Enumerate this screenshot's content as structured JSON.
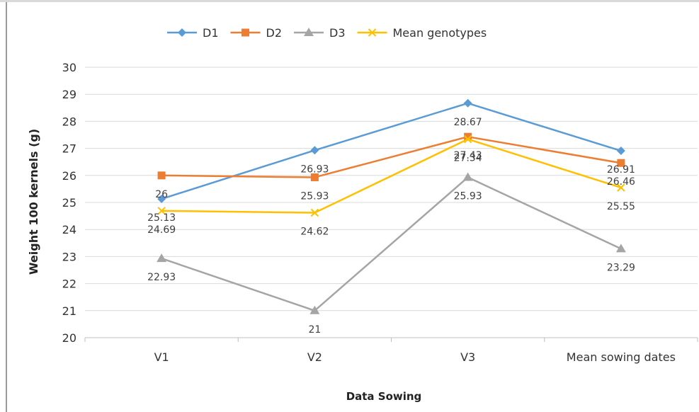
{
  "chart_data": {
    "type": "line",
    "title": "",
    "xlabel": "Data Sowing",
    "ylabel": "Weight 100 kernels (g)",
    "categories": [
      "V1",
      "V2",
      "V3",
      "Mean sowing dates"
    ],
    "ylim": [
      20,
      30
    ],
    "yticks": [
      "20",
      "21",
      "22",
      "23",
      "24",
      "25",
      "26",
      "27",
      "28",
      "29",
      "30"
    ],
    "grid": true,
    "legend_position": "top",
    "series": [
      {
        "name": "D1",
        "values": [
          25.13,
          26.93,
          28.67,
          26.91
        ],
        "labels": [
          "25.13",
          "26.93",
          "28.67",
          "26.91"
        ],
        "color": "#5B9BD5",
        "marker": "diamond"
      },
      {
        "name": "D2",
        "values": [
          26,
          25.93,
          27.43,
          26.46
        ],
        "labels": [
          "26",
          "25.93",
          "27.43",
          "26.46"
        ],
        "color": "#ED7D31",
        "marker": "square"
      },
      {
        "name": "D3",
        "values": [
          22.93,
          21,
          25.93,
          23.29
        ],
        "labels": [
          "22.93",
          "21",
          "25.93",
          "23.29"
        ],
        "color": "#A5A5A5",
        "marker": "triangle"
      },
      {
        "name": "Mean genotypes",
        "values": [
          24.69,
          24.62,
          27.34,
          25.55
        ],
        "labels": [
          "24.69",
          "24.62",
          "27.34",
          "25.55"
        ],
        "color": "#FFC000",
        "marker": "x"
      }
    ]
  }
}
